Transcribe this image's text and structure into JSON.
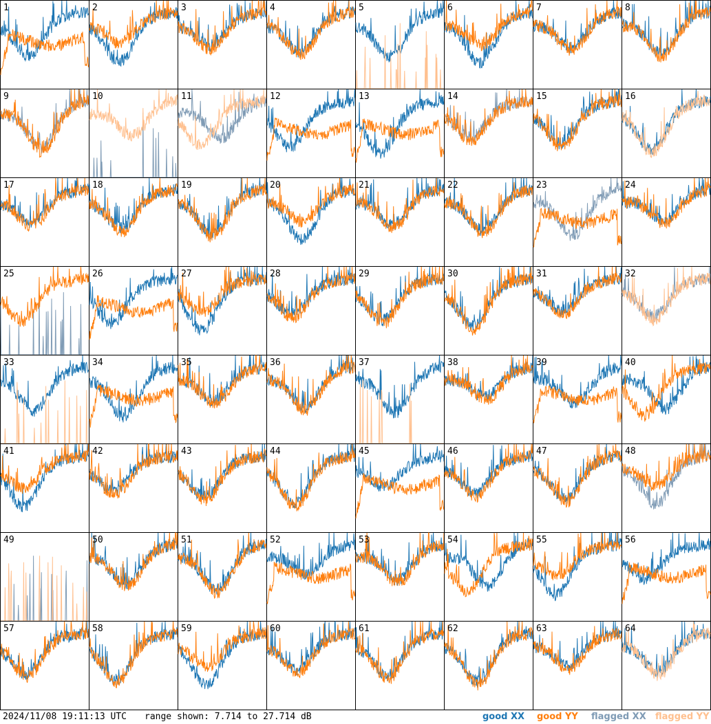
{
  "chart_data": {
    "type": "line",
    "title": "",
    "xlabel": "",
    "ylabel": "",
    "grid": false,
    "layout": "8x8 small multiples, one per antenna",
    "y_range_db": [
      7.714,
      27.714
    ],
    "panels": [
      {
        "label": "1",
        "xx": "good",
        "yy": "good"
      },
      {
        "label": "2",
        "xx": "good",
        "yy": "good"
      },
      {
        "label": "3",
        "xx": "good",
        "yy": "good"
      },
      {
        "label": "4",
        "xx": "good",
        "yy": "good"
      },
      {
        "label": "5",
        "xx": "good",
        "yy": "flagged"
      },
      {
        "label": "6",
        "xx": "good",
        "yy": "good"
      },
      {
        "label": "7",
        "xx": "good",
        "yy": "good"
      },
      {
        "label": "8",
        "xx": "good",
        "yy": "good"
      },
      {
        "label": "9",
        "xx": "flagged",
        "yy": "good"
      },
      {
        "label": "10",
        "xx": "flagged",
        "yy": "flagged"
      },
      {
        "label": "11",
        "xx": "flagged",
        "yy": "flagged"
      },
      {
        "label": "12",
        "xx": "good",
        "yy": "good"
      },
      {
        "label": "13",
        "xx": "good",
        "yy": "good"
      },
      {
        "label": "14",
        "xx": "flagged",
        "yy": "good"
      },
      {
        "label": "15",
        "xx": "good",
        "yy": "good"
      },
      {
        "label": "16",
        "xx": "good",
        "yy": "flagged"
      },
      {
        "label": "17",
        "xx": "good",
        "yy": "good"
      },
      {
        "label": "18",
        "xx": "good",
        "yy": "good"
      },
      {
        "label": "19",
        "xx": "good",
        "yy": "good"
      },
      {
        "label": "20",
        "xx": "good",
        "yy": "good"
      },
      {
        "label": "21",
        "xx": "good",
        "yy": "good"
      },
      {
        "label": "22",
        "xx": "good",
        "yy": "good"
      },
      {
        "label": "23",
        "xx": "flagged",
        "yy": "good"
      },
      {
        "label": "24",
        "xx": "good",
        "yy": "good"
      },
      {
        "label": "25",
        "xx": "flagged",
        "yy": "good"
      },
      {
        "label": "26",
        "xx": "good",
        "yy": "good"
      },
      {
        "label": "27",
        "xx": "good",
        "yy": "good"
      },
      {
        "label": "28",
        "xx": "good",
        "yy": "good"
      },
      {
        "label": "29",
        "xx": "good",
        "yy": "good"
      },
      {
        "label": "30",
        "xx": "good",
        "yy": "good"
      },
      {
        "label": "31",
        "xx": "good",
        "yy": "good"
      },
      {
        "label": "32",
        "xx": "flagged",
        "yy": "flagged"
      },
      {
        "label": "33",
        "xx": "good",
        "yy": "flagged"
      },
      {
        "label": "34",
        "xx": "good",
        "yy": "good"
      },
      {
        "label": "35",
        "xx": "good",
        "yy": "good"
      },
      {
        "label": "36",
        "xx": "good",
        "yy": "good"
      },
      {
        "label": "37",
        "xx": "good",
        "yy": "flagged"
      },
      {
        "label": "38",
        "xx": "good",
        "yy": "good"
      },
      {
        "label": "39",
        "xx": "good",
        "yy": "good"
      },
      {
        "label": "40",
        "xx": "good",
        "yy": "good"
      },
      {
        "label": "41",
        "xx": "good",
        "yy": "good"
      },
      {
        "label": "42",
        "xx": "good",
        "yy": "good"
      },
      {
        "label": "43",
        "xx": "good",
        "yy": "good"
      },
      {
        "label": "44",
        "xx": "good",
        "yy": "good"
      },
      {
        "label": "45",
        "xx": "good",
        "yy": "good"
      },
      {
        "label": "46",
        "xx": "good",
        "yy": "good"
      },
      {
        "label": "47",
        "xx": "good",
        "yy": "good"
      },
      {
        "label": "48",
        "xx": "flagged",
        "yy": "good"
      },
      {
        "label": "49",
        "xx": "flagged",
        "yy": "flagged"
      },
      {
        "label": "50",
        "xx": "good",
        "yy": "good"
      },
      {
        "label": "51",
        "xx": "good",
        "yy": "good"
      },
      {
        "label": "52",
        "xx": "good",
        "yy": "good"
      },
      {
        "label": "53",
        "xx": "good",
        "yy": "good"
      },
      {
        "label": "54",
        "xx": "good",
        "yy": "good"
      },
      {
        "label": "55",
        "xx": "good",
        "yy": "good"
      },
      {
        "label": "56",
        "xx": "good",
        "yy": "good"
      },
      {
        "label": "57",
        "xx": "good",
        "yy": "good"
      },
      {
        "label": "58",
        "xx": "good",
        "yy": "good"
      },
      {
        "label": "59",
        "xx": "good",
        "yy": "good"
      },
      {
        "label": "60",
        "xx": "good",
        "yy": "good"
      },
      {
        "label": "61",
        "xx": "good",
        "yy": "good"
      },
      {
        "label": "62",
        "xx": "good",
        "yy": "good"
      },
      {
        "label": "63",
        "xx": "good",
        "yy": "good"
      },
      {
        "label": "64",
        "xx": "good",
        "yy": "flagged"
      }
    ],
    "legend": {
      "placement": "bottom-right",
      "items": [
        {
          "label": "good XX",
          "color": "#1f77b4"
        },
        {
          "label": "good YY",
          "color": "#ff7f0e"
        },
        {
          "label": "flagged XX",
          "color": "#7f9bb5"
        },
        {
          "label": "flagged YY",
          "color": "#ffc08f"
        }
      ]
    }
  },
  "footer": {
    "timestamp": "2024/11/08 19:11:13 UTC",
    "range_text": "range shown: 7.714 to 27.714 dB"
  }
}
